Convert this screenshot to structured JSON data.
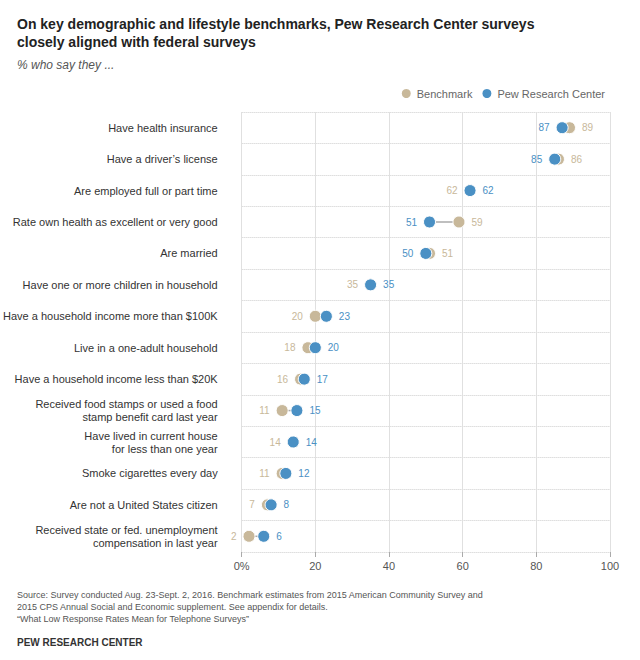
{
  "chart_data": {
    "type": "dumbbell",
    "title": "On key demographic and lifestyle benchmarks, Pew Research Center surveys\nclosely aligned with federal surveys",
    "subtitle": "% who say they ...",
    "categories": [
      "Have health insurance",
      "Have a driver’s license",
      "Are employed full or part time",
      "Rate own health as excellent or very good",
      "Are married",
      "Have one or more children in household",
      "Have a household income more than $100K",
      "Live in a one-adult household",
      "Have a household income less than $20K",
      "Received food stamps or used a food\nstamp benefit card last year",
      "Have lived in current house\nfor less than one year",
      "Smoke cigarettes every day",
      "Are not a United States citizen",
      "Received state or fed. unemployment\ncompensation in last year"
    ],
    "series": [
      {
        "name": "Benchmark",
        "color": "#c8b89a",
        "values": [
          89,
          86,
          62,
          59,
          51,
          35,
          20,
          18,
          16,
          11,
          14,
          11,
          7,
          2
        ]
      },
      {
        "name": "Pew Research Center",
        "color": "#4a90c4",
        "values": [
          87,
          85,
          62,
          51,
          50,
          35,
          23,
          20,
          17,
          15,
          14,
          12,
          8,
          6
        ]
      }
    ],
    "orientation": "horizontal",
    "xlim": [
      0,
      100
    ],
    "xticks": [
      {
        "value": 0,
        "label": "0%"
      },
      20,
      40,
      60,
      80,
      100
    ],
    "grid": true,
    "legend": "upper right",
    "data_labels": true,
    "annotations": [
      "Source: Survey conducted Aug. 23-Sept. 2, 2016. Benchmark estimates from 2015 American Community Survey and\n2015 CPS Annual Social and Economic supplement. See appendix for details.\n“What Low Response Rates Mean for Telephone Surveys”",
      "PEW RESEARCH CENTER"
    ]
  }
}
